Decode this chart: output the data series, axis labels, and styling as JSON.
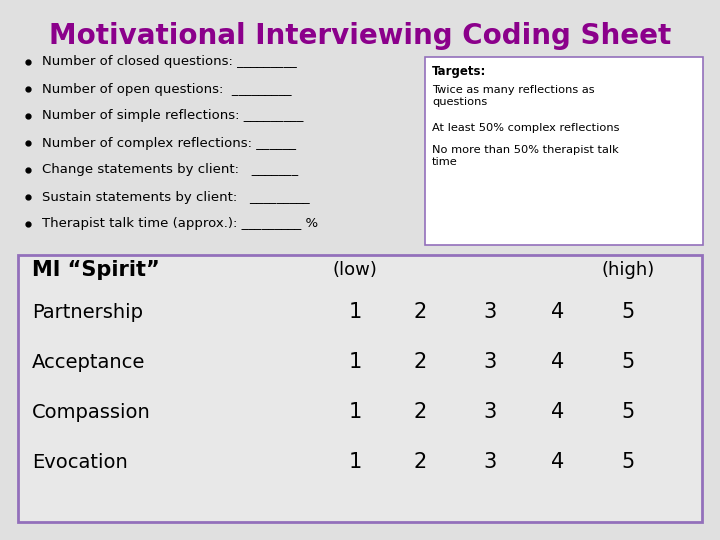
{
  "title": "Motivational Interviewing Coding Sheet",
  "title_color": "#8B008B",
  "title_fontsize": 20,
  "background_color": "#E0E0E0",
  "bullet_items": [
    "Number of closed questions: _________",
    "Number of open questions:  _________",
    "Number of simple reflections: _________",
    "Number of complex reflections: ______",
    "Change statements by client:   _______",
    "Sustain statements by client:   _________",
    "Therapist talk time (approx.): _________ %"
  ],
  "targets_title": "Targets:",
  "targets_items": [
    "Twice as many reflections as\nquestions",
    "At least 50% complex reflections",
    "No more than 50% therapist talk\ntime"
  ],
  "table_header_label": "MI “Spirit”",
  "table_low": "(low)",
  "table_high": "(high)",
  "table_rows": [
    "Partnership",
    "Acceptance",
    "Compassion",
    "Evocation"
  ],
  "table_scores": [
    1,
    2,
    3,
    4,
    5
  ],
  "purple_color": "#8B008B",
  "box_border_color": "#9370BB",
  "table_bg_color": "#E8E8E8"
}
